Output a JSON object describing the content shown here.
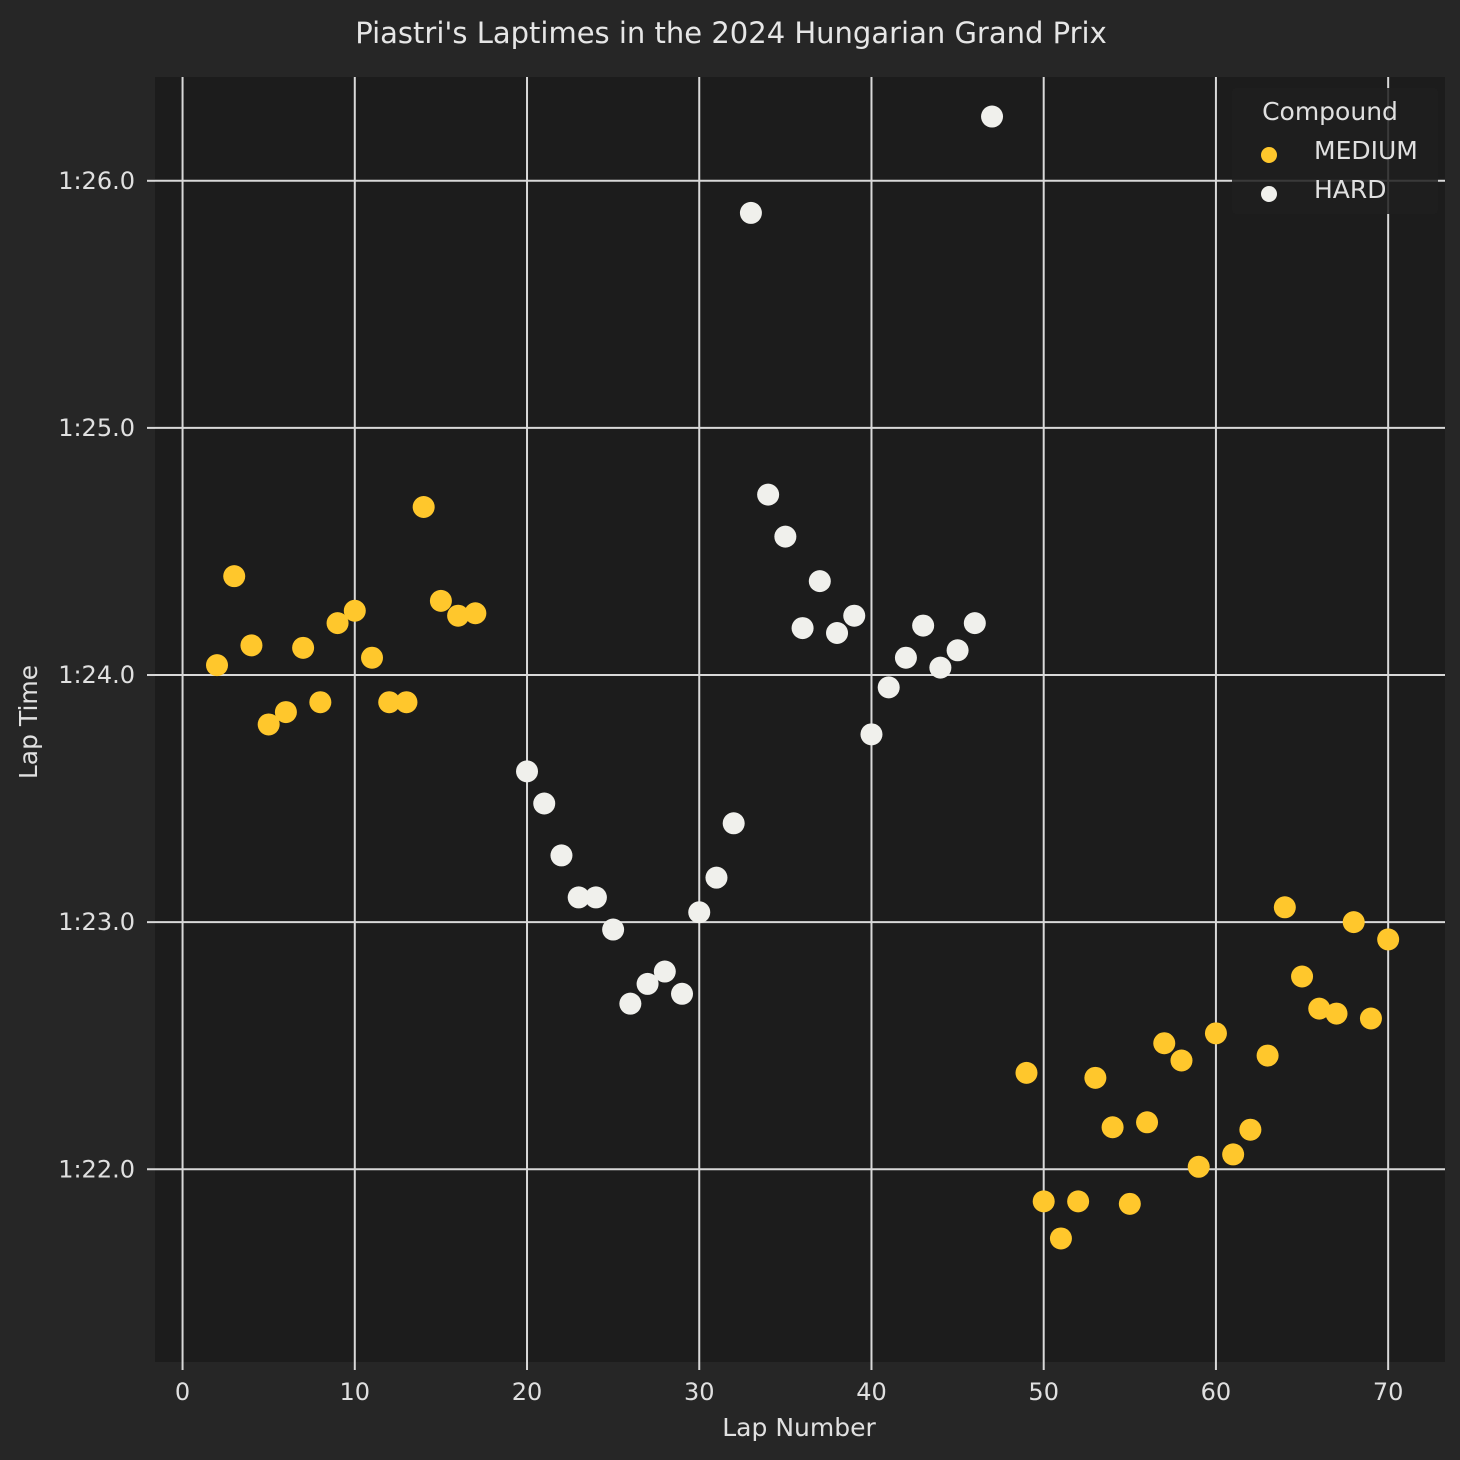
{
  "chart_data": {
    "type": "scatter",
    "title": "Piastri's Laptimes in the 2024 Hungarian Grand Prix",
    "xlabel": "Lap Number",
    "ylabel": "Lap Time",
    "xlim": [
      -1.6,
      73.3
    ],
    "ylim": [
      81.22,
      86.42
    ],
    "x_ticks": [
      0,
      10,
      20,
      30,
      40,
      50,
      60,
      70
    ],
    "y_ticks": [
      82,
      83,
      84,
      85,
      86
    ],
    "y_tick_labels": [
      "1:22.0",
      "1:23.0",
      "1:24.0",
      "1:25.0",
      "1:26.0"
    ],
    "grid": true,
    "legend": {
      "title": "Compound",
      "position": "top-right"
    },
    "series": [
      {
        "name": "MEDIUM",
        "color": "#FFC72C",
        "points": [
          [
            2,
            84.04
          ],
          [
            3,
            84.4
          ],
          [
            4,
            84.12
          ],
          [
            5,
            83.8
          ],
          [
            6,
            83.85
          ],
          [
            7,
            84.11
          ],
          [
            8,
            83.89
          ],
          [
            9,
            84.21
          ],
          [
            10,
            84.26
          ],
          [
            11,
            84.07
          ],
          [
            12,
            83.89
          ],
          [
            13,
            83.89
          ],
          [
            14,
            84.68
          ],
          [
            15,
            84.3
          ],
          [
            16,
            84.24
          ],
          [
            17,
            84.25
          ],
          [
            49,
            82.39
          ],
          [
            50,
            81.87
          ],
          [
            51,
            81.72
          ],
          [
            52,
            81.87
          ],
          [
            53,
            82.37
          ],
          [
            54,
            82.17
          ],
          [
            55,
            81.86
          ],
          [
            56,
            82.19
          ],
          [
            57,
            82.51
          ],
          [
            58,
            82.44
          ],
          [
            59,
            82.01
          ],
          [
            60,
            82.55
          ],
          [
            61,
            82.06
          ],
          [
            62,
            82.16
          ],
          [
            63,
            82.46
          ],
          [
            64,
            83.06
          ],
          [
            65,
            82.78
          ],
          [
            66,
            82.65
          ],
          [
            67,
            82.63
          ],
          [
            68,
            83.0
          ],
          [
            69,
            82.61
          ],
          [
            70,
            82.93
          ]
        ]
      },
      {
        "name": "HARD",
        "color": "#F0F0EC",
        "points": [
          [
            20,
            83.61
          ],
          [
            21,
            83.48
          ],
          [
            22,
            83.27
          ],
          [
            23,
            83.1
          ],
          [
            24,
            83.1
          ],
          [
            25,
            82.97
          ],
          [
            26,
            82.67
          ],
          [
            27,
            82.75
          ],
          [
            28,
            82.8
          ],
          [
            29,
            82.71
          ],
          [
            30,
            83.04
          ],
          [
            31,
            83.18
          ],
          [
            32,
            83.4
          ],
          [
            33,
            85.87
          ],
          [
            34,
            84.73
          ],
          [
            35,
            84.56
          ],
          [
            36,
            84.19
          ],
          [
            37,
            84.38
          ],
          [
            38,
            84.17
          ],
          [
            39,
            84.24
          ],
          [
            40,
            83.76
          ],
          [
            41,
            83.95
          ],
          [
            42,
            84.07
          ],
          [
            43,
            84.2
          ],
          [
            44,
            84.03
          ],
          [
            45,
            84.1
          ],
          [
            46,
            84.21
          ],
          [
            47,
            86.26
          ]
        ]
      }
    ]
  },
  "style": {
    "figure_bg": "#262626",
    "plot_bg": "#1c1c1c",
    "grid_color": "#d8d8d8"
  }
}
